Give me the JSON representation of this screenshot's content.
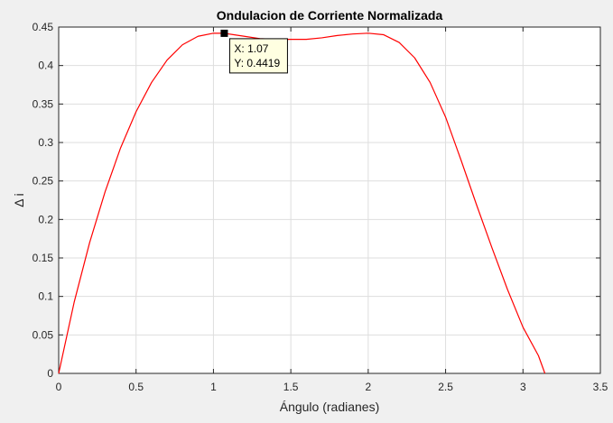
{
  "chart_data": {
    "type": "line",
    "title": "Ondulacion de Corriente Normalizada",
    "xlabel": "Ángulo (radianes)",
    "ylabel": "Δ i",
    "xlim": [
      0,
      3.5
    ],
    "ylim": [
      0,
      0.45
    ],
    "grid": true,
    "xticks": [
      0,
      0.5,
      1,
      1.5,
      2,
      2.5,
      3,
      3.5
    ],
    "xtick_labels": [
      "0",
      "0.5",
      "1",
      "1.5",
      "2",
      "2.5",
      "3",
      "3.5"
    ],
    "yticks": [
      0,
      0.05,
      0.1,
      0.15,
      0.2,
      0.25,
      0.3,
      0.35,
      0.4,
      0.45
    ],
    "ytick_labels": [
      "0",
      "0.05",
      "0.1",
      "0.15",
      "0.2",
      "0.25",
      "0.3",
      "0.35",
      "0.4",
      "0.45"
    ],
    "series": [
      {
        "color": "#ff0000",
        "x": [
          0,
          0.1,
          0.2,
          0.3,
          0.4,
          0.5,
          0.6,
          0.7,
          0.8,
          0.9,
          1.0,
          1.07,
          1.1,
          1.2,
          1.3,
          1.4,
          1.5,
          1.6,
          1.7,
          1.8,
          1.9,
          2.0,
          2.1,
          2.2,
          2.3,
          2.4,
          2.5,
          2.6,
          2.7,
          2.8,
          2.9,
          3.0,
          3.1,
          3.1416
        ],
        "y": [
          0,
          0.0925,
          0.17,
          0.236,
          0.293,
          0.34,
          0.378,
          0.407,
          0.427,
          0.438,
          0.442,
          0.4419,
          0.441,
          0.438,
          0.435,
          0.434,
          0.434,
          0.434,
          0.436,
          0.439,
          0.441,
          0.442,
          0.44,
          0.43,
          0.41,
          0.378,
          0.333,
          0.277,
          0.219,
          0.163,
          0.109,
          0.06,
          0.023,
          0
        ]
      }
    ],
    "datatip": {
      "x": 1.07,
      "y": 0.4419,
      "label_x": "X: 1.07",
      "label_y": "Y: 0.4419"
    }
  }
}
